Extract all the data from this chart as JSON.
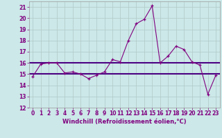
{
  "x_values": [
    0,
    1,
    2,
    3,
    4,
    5,
    6,
    7,
    8,
    9,
    10,
    11,
    12,
    13,
    14,
    15,
    16,
    17,
    18,
    19,
    20,
    21,
    22,
    23
  ],
  "y_line1": [
    14.8,
    15.9,
    16.0,
    16.0,
    15.1,
    15.2,
    15.0,
    14.6,
    14.9,
    15.2,
    16.3,
    16.1,
    18.0,
    19.5,
    19.9,
    21.1,
    16.0,
    16.6,
    17.5,
    17.2,
    16.1,
    15.8,
    13.2,
    14.9
  ],
  "hline1_y": 15.0,
  "hline2_y": 16.0,
  "line_color": "#800080",
  "hline_color": "#4b0082",
  "bg_color": "#cce8e8",
  "grid_color": "#b0c8c8",
  "xlabel": "Windchill (Refroidissement éolien,°C)",
  "ylim": [
    12,
    21.5
  ],
  "xlim": [
    -0.5,
    23.5
  ],
  "yticks": [
    12,
    13,
    14,
    15,
    16,
    17,
    18,
    19,
    20,
    21
  ],
  "xticks": [
    0,
    1,
    2,
    3,
    4,
    5,
    6,
    7,
    8,
    9,
    10,
    11,
    12,
    13,
    14,
    15,
    16,
    17,
    18,
    19,
    20,
    21,
    22,
    23
  ],
  "title_fontsize": 6,
  "tick_fontsize": 5.5,
  "xlabel_fontsize": 6
}
